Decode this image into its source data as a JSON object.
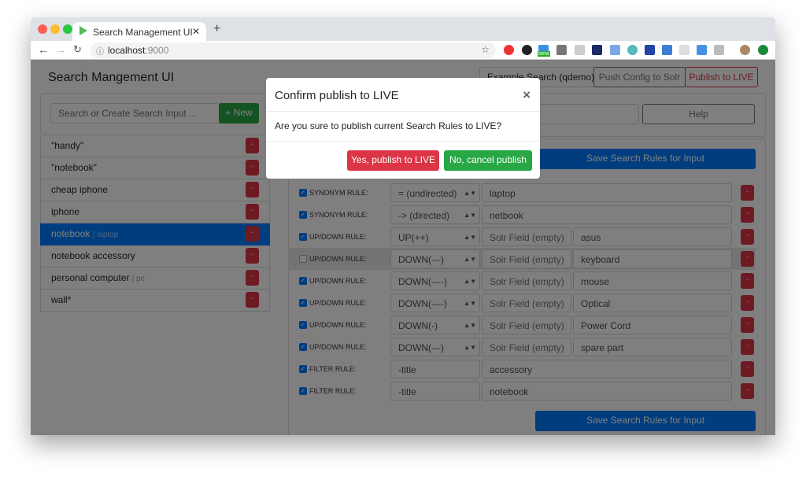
{
  "browser": {
    "tab_title": "Search Management UI",
    "url_host": "localhost",
    "url_port": ":9000",
    "extension_badge": "beta"
  },
  "header": {
    "title": "Search Mangement UI",
    "solr_select": "Example Search (qdemo)",
    "push_config": "Push Config to Solr",
    "publish_live": "Publish to LIVE"
  },
  "sidebar": {
    "search_placeholder": "Search or Create Search Input ...",
    "new_button": "+ New",
    "remove_label": "-",
    "items": [
      {
        "label": "\"handy\"",
        "synonyms": ""
      },
      {
        "label": "\"notebook\"",
        "synonyms": ""
      },
      {
        "label": "cheap iphone",
        "synonyms": ""
      },
      {
        "label": "iphone",
        "synonyms": ""
      },
      {
        "label": "notebook",
        "synonyms": "| laptop",
        "selected": true
      },
      {
        "label": "notebook accessory",
        "synonyms": ""
      },
      {
        "label": "personal computer",
        "synonyms": "| pc"
      },
      {
        "label": "wall*",
        "synonyms": ""
      }
    ]
  },
  "main": {
    "help": "Help",
    "save_button": "Save Search Rules for Input",
    "solr_field_placeholder": "Solr Field (empty)",
    "rules": [
      {
        "checked": true,
        "type": "SYNONYM RULE:",
        "select": "= (undirected)",
        "term": "laptop"
      },
      {
        "checked": true,
        "type": "SYNONYM RULE:",
        "select": "-> (directed)",
        "term": "netbook"
      },
      {
        "checked": true,
        "type": "UP/DOWN RULE:",
        "select": "UP(++)",
        "field": "",
        "term": "asus"
      },
      {
        "checked": false,
        "type": "UP/DOWN RULE:",
        "select": "DOWN(---)",
        "field": "",
        "term": "keyboard"
      },
      {
        "checked": true,
        "type": "UP/DOWN RULE:",
        "select": "DOWN(----)",
        "field": "",
        "term": "mouse"
      },
      {
        "checked": true,
        "type": "UP/DOWN RULE:",
        "select": "DOWN(----)",
        "field": "",
        "term": "Optical"
      },
      {
        "checked": true,
        "type": "UP/DOWN RULE:",
        "select": "DOWN(-)",
        "field": "",
        "term": "Power Cord"
      },
      {
        "checked": true,
        "type": "UP/DOWN RULE:",
        "select": "DOWN(---)",
        "field": "",
        "term": "spare part"
      },
      {
        "checked": true,
        "type": "FILTER RULE:",
        "select": "-title",
        "term": "accessory"
      },
      {
        "checked": true,
        "type": "FILTER RULE:",
        "select": "-title",
        "term": "notebook"
      }
    ]
  },
  "modal": {
    "title": "Confirm publish to LIVE",
    "close": "×",
    "body": "Are you sure to publish current Search Rules to LIVE?",
    "confirm": "Yes, publish to LIVE",
    "cancel": "No, cancel publish"
  },
  "colors": {
    "primary": "#007bff",
    "danger": "#dc3545",
    "success": "#28a745"
  }
}
